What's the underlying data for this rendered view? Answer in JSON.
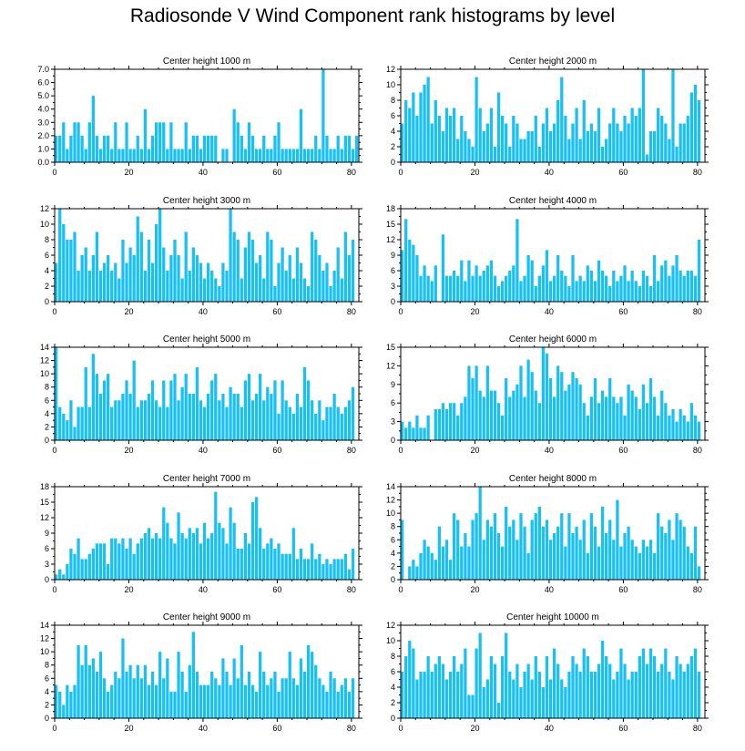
{
  "title": "Radiosonde V Wind Component rank histograms by level",
  "colors": {
    "bar": "#18c0f4",
    "axis": "#000000",
    "background": "#ffffff"
  },
  "chart_data": [
    {
      "type": "bar",
      "title": "Center height 1000 m",
      "xlim": [
        0,
        82
      ],
      "ylim": [
        0,
        7
      ],
      "yticks": [
        "0.0",
        "1.0",
        "2.0",
        "3.0",
        "4.0",
        "5.0",
        "6.0",
        "7.0"
      ],
      "xticks": [
        0,
        20,
        40,
        60,
        80
      ],
      "values": [
        2,
        2,
        3,
        1,
        2,
        3,
        3,
        2,
        1,
        3,
        5,
        2,
        1,
        2,
        2,
        1,
        3,
        1,
        1,
        3,
        1,
        1,
        2,
        1,
        4,
        1,
        2,
        3,
        3,
        3,
        1,
        3,
        1,
        1,
        1,
        3,
        1,
        2,
        2,
        1,
        2,
        2,
        2,
        2,
        0,
        1,
        1,
        0,
        4,
        3,
        2,
        1,
        3,
        2,
        1,
        1,
        2,
        1,
        1,
        2,
        3,
        1,
        1,
        1,
        1,
        1,
        4,
        1,
        1,
        1,
        2,
        1,
        7,
        2,
        1,
        1,
        2,
        1,
        2,
        2,
        1,
        2
      ]
    },
    {
      "type": "bar",
      "title": "Center height 2000 m",
      "xlim": [
        0,
        82
      ],
      "ylim": [
        0,
        12
      ],
      "yticks": [
        "0",
        "2",
        "4",
        "6",
        "8",
        "10",
        "12"
      ],
      "xticks": [
        0,
        20,
        40,
        60,
        80
      ],
      "values": [
        5,
        8,
        7,
        9,
        6,
        9,
        10,
        11,
        5,
        8,
        6,
        4,
        7,
        6,
        7,
        3,
        6,
        4,
        3,
        2,
        11,
        7,
        4,
        5,
        7,
        2,
        9,
        6,
        5,
        2,
        6,
        5,
        3,
        3,
        4,
        4,
        6,
        2,
        5,
        7,
        4,
        5,
        8,
        11,
        6,
        3,
        5,
        7,
        3,
        8,
        4,
        5,
        4,
        7,
        2,
        3,
        5,
        7,
        5,
        4,
        6,
        5,
        7,
        6,
        7,
        12,
        1,
        4,
        4,
        7,
        6,
        5,
        3,
        12,
        2,
        5,
        5,
        6,
        9,
        10,
        8
      ]
    },
    {
      "type": "bar",
      "title": "Center height 3000 m",
      "xlim": [
        0,
        82
      ],
      "ylim": [
        0,
        12
      ],
      "yticks": [
        "0",
        "2",
        "4",
        "6",
        "8",
        "10",
        "12"
      ],
      "xticks": [
        0,
        20,
        40,
        60,
        80
      ],
      "values": [
        5,
        12,
        10,
        8,
        8,
        9,
        4,
        6,
        7,
        4,
        6,
        9,
        4,
        5,
        6,
        4,
        5,
        3,
        8,
        5,
        7,
        6,
        11,
        9,
        4,
        8,
        5,
        10,
        12,
        7,
        4,
        6,
        8,
        6,
        3,
        9,
        4,
        7,
        6,
        5,
        3,
        5,
        4,
        3,
        2,
        5,
        4,
        12,
        9,
        8,
        3,
        7,
        9,
        8,
        5,
        6,
        3,
        9,
        8,
        2,
        5,
        7,
        4,
        6,
        3,
        7,
        5,
        3,
        2,
        9,
        8,
        6,
        4,
        5,
        2,
        4,
        7,
        3,
        9,
        6,
        8
      ]
    },
    {
      "type": "bar",
      "title": "Center height 4000 m",
      "xlim": [
        0,
        82
      ],
      "ylim": [
        0,
        18
      ],
      "yticks": [
        "0",
        "3",
        "6",
        "9",
        "12",
        "15",
        "18"
      ],
      "xticks": [
        0,
        20,
        40,
        60,
        80
      ],
      "values": [
        10,
        16,
        12,
        11,
        9,
        5,
        7,
        5,
        4,
        7,
        0,
        13,
        5,
        5,
        6,
        5,
        8,
        4,
        8,
        5,
        7,
        5,
        6,
        7,
        8,
        5,
        3,
        4,
        5,
        6,
        7,
        16,
        4,
        5,
        9,
        8,
        3,
        5,
        7,
        10,
        4,
        5,
        9,
        6,
        5,
        3,
        9,
        4,
        5,
        4,
        7,
        6,
        4,
        8,
        6,
        5,
        3,
        6,
        4,
        5,
        7,
        4,
        6,
        4,
        3,
        6,
        5,
        3,
        9,
        4,
        7,
        8,
        5,
        7,
        9,
        6,
        5,
        6,
        6,
        5,
        12
      ]
    },
    {
      "type": "bar",
      "title": "Center height 5000 m",
      "xlim": [
        0,
        82
      ],
      "ylim": [
        0,
        14
      ],
      "yticks": [
        "0",
        "2",
        "4",
        "6",
        "8",
        "10",
        "12",
        "14"
      ],
      "xticks": [
        0,
        20,
        40,
        60,
        80
      ],
      "values": [
        14,
        5,
        4,
        3,
        6,
        2,
        5,
        5,
        11,
        5,
        13,
        10,
        7,
        9,
        10,
        5,
        6,
        6,
        7,
        9,
        7,
        12,
        5,
        6,
        6,
        7,
        9,
        6,
        5,
        9,
        5,
        9,
        10,
        6,
        8,
        10,
        7,
        7,
        11,
        6,
        5,
        7,
        9,
        10,
        6,
        7,
        5,
        8,
        7,
        7,
        5,
        9,
        10,
        6,
        7,
        10,
        6,
        8,
        7,
        9,
        4,
        9,
        6,
        5,
        4,
        7,
        5,
        11,
        9,
        6,
        4,
        6,
        3,
        5,
        5,
        7,
        5,
        4,
        5,
        6,
        8
      ]
    },
    {
      "type": "bar",
      "title": "Center height 6000 m",
      "xlim": [
        0,
        82
      ],
      "ylim": [
        0,
        15
      ],
      "yticks": [
        "0",
        "3",
        "6",
        "9",
        "12",
        "15"
      ],
      "xticks": [
        0,
        20,
        40,
        60,
        80
      ],
      "values": [
        3,
        2,
        3,
        2,
        4,
        2,
        2,
        4,
        0,
        5,
        5,
        6,
        5,
        6,
        6,
        4,
        6,
        7,
        12,
        10,
        12,
        8,
        7,
        12,
        8,
        8,
        6,
        4,
        10,
        7,
        8,
        9,
        12,
        7,
        13,
        11,
        8,
        6,
        15,
        14,
        10,
        7,
        12,
        11,
        8,
        9,
        11,
        10,
        9,
        6,
        4,
        7,
        10,
        6,
        8,
        7,
        10,
        7,
        6,
        7,
        4,
        9,
        8,
        7,
        5,
        9,
        6,
        10,
        7,
        4,
        8,
        6,
        4,
        5,
        3,
        5,
        4,
        3,
        6,
        4,
        3
      ]
    },
    {
      "type": "bar",
      "title": "Center height 7000 m",
      "xlim": [
        0,
        82
      ],
      "ylim": [
        0,
        18
      ],
      "yticks": [
        "0",
        "3",
        "6",
        "9",
        "12",
        "15",
        "18"
      ],
      "xticks": [
        0,
        20,
        40,
        60,
        80
      ],
      "values": [
        1,
        2,
        1,
        3,
        6,
        5,
        8,
        4,
        4,
        5,
        6,
        7,
        7,
        7,
        3,
        8,
        8,
        7,
        8,
        6,
        8,
        5,
        7,
        8,
        9,
        10,
        8,
        9,
        8,
        14,
        11,
        8,
        7,
        13,
        9,
        8,
        10,
        9,
        10,
        7,
        11,
        8,
        9,
        17,
        11,
        10,
        7,
        14,
        11,
        6,
        6,
        9,
        7,
        15,
        16,
        10,
        6,
        7,
        8,
        6,
        7,
        5,
        5,
        5,
        10,
        4,
        6,
        4,
        4,
        7,
        4,
        5,
        3,
        4,
        3,
        4,
        4,
        4,
        5,
        2,
        6
      ]
    },
    {
      "type": "bar",
      "title": "Center height 8000 m",
      "xlim": [
        0,
        82
      ],
      "ylim": [
        0,
        14
      ],
      "yticks": [
        "0",
        "2",
        "4",
        "6",
        "8",
        "10",
        "12",
        "14"
      ],
      "xticks": [
        0,
        20,
        40,
        60,
        80
      ],
      "values": [
        9,
        0,
        2,
        3,
        2,
        4,
        6,
        5,
        4,
        3,
        8,
        5,
        6,
        3,
        10,
        9,
        5,
        7,
        5,
        9,
        10,
        14,
        6,
        9,
        8,
        10,
        7,
        5,
        11,
        8,
        9,
        6,
        10,
        8,
        4,
        9,
        10,
        11,
        8,
        9,
        6,
        7,
        8,
        10,
        5,
        10,
        7,
        8,
        6,
        9,
        4,
        10,
        8,
        5,
        11,
        7,
        9,
        6,
        12,
        5,
        7,
        8,
        6,
        5,
        4,
        6,
        5,
        6,
        4,
        10,
        8,
        7,
        9,
        6,
        10,
        9,
        8,
        5,
        4,
        8,
        2
      ]
    },
    {
      "type": "bar",
      "title": "Center height 9000 m",
      "xlim": [
        0,
        82
      ],
      "ylim": [
        0,
        14
      ],
      "yticks": [
        "0",
        "2",
        "4",
        "6",
        "8",
        "10",
        "12",
        "14"
      ],
      "xticks": [
        0,
        20,
        40,
        60,
        80
      ],
      "values": [
        5,
        4,
        2,
        5,
        4,
        5,
        11,
        8,
        11,
        8,
        9,
        7,
        10,
        6,
        4,
        5,
        7,
        6,
        12,
        7,
        8,
        6,
        8,
        6,
        8,
        5,
        7,
        5,
        10,
        6,
        9,
        4,
        4,
        10,
        7,
        4,
        8,
        13,
        7,
        5,
        5,
        5,
        7,
        6,
        5,
        9,
        7,
        5,
        9,
        6,
        11,
        5,
        7,
        5,
        4,
        10,
        7,
        5,
        6,
        7,
        4,
        6,
        6,
        10,
        6,
        5,
        9,
        7,
        11,
        10,
        8,
        6,
        5,
        4,
        7,
        6,
        4,
        5,
        6,
        4,
        6
      ]
    },
    {
      "type": "bar",
      "title": "Center height 10000 m",
      "xlim": [
        0,
        82
      ],
      "ylim": [
        0,
        12
      ],
      "yticks": [
        "0",
        "2",
        "4",
        "6",
        "8",
        "10",
        "12"
      ],
      "xticks": [
        0,
        20,
        40,
        60,
        80
      ],
      "values": [
        6,
        8,
        10,
        9,
        5,
        6,
        6,
        8,
        6,
        7,
        8,
        7,
        5,
        6,
        8,
        6,
        7,
        9,
        3,
        3,
        9,
        11,
        4,
        5,
        8,
        7,
        2,
        8,
        11,
        6,
        5,
        7,
        4,
        6,
        7,
        5,
        8,
        6,
        4,
        8,
        5,
        9,
        7,
        5,
        4,
        6,
        8,
        7,
        6,
        9,
        8,
        6,
        6,
        7,
        10,
        8,
        7,
        5,
        6,
        9,
        7,
        5,
        6,
        6,
        8,
        9,
        7,
        9,
        8,
        6,
        7,
        9,
        6,
        5,
        8,
        7,
        6,
        7,
        8,
        9,
        6
      ]
    }
  ]
}
